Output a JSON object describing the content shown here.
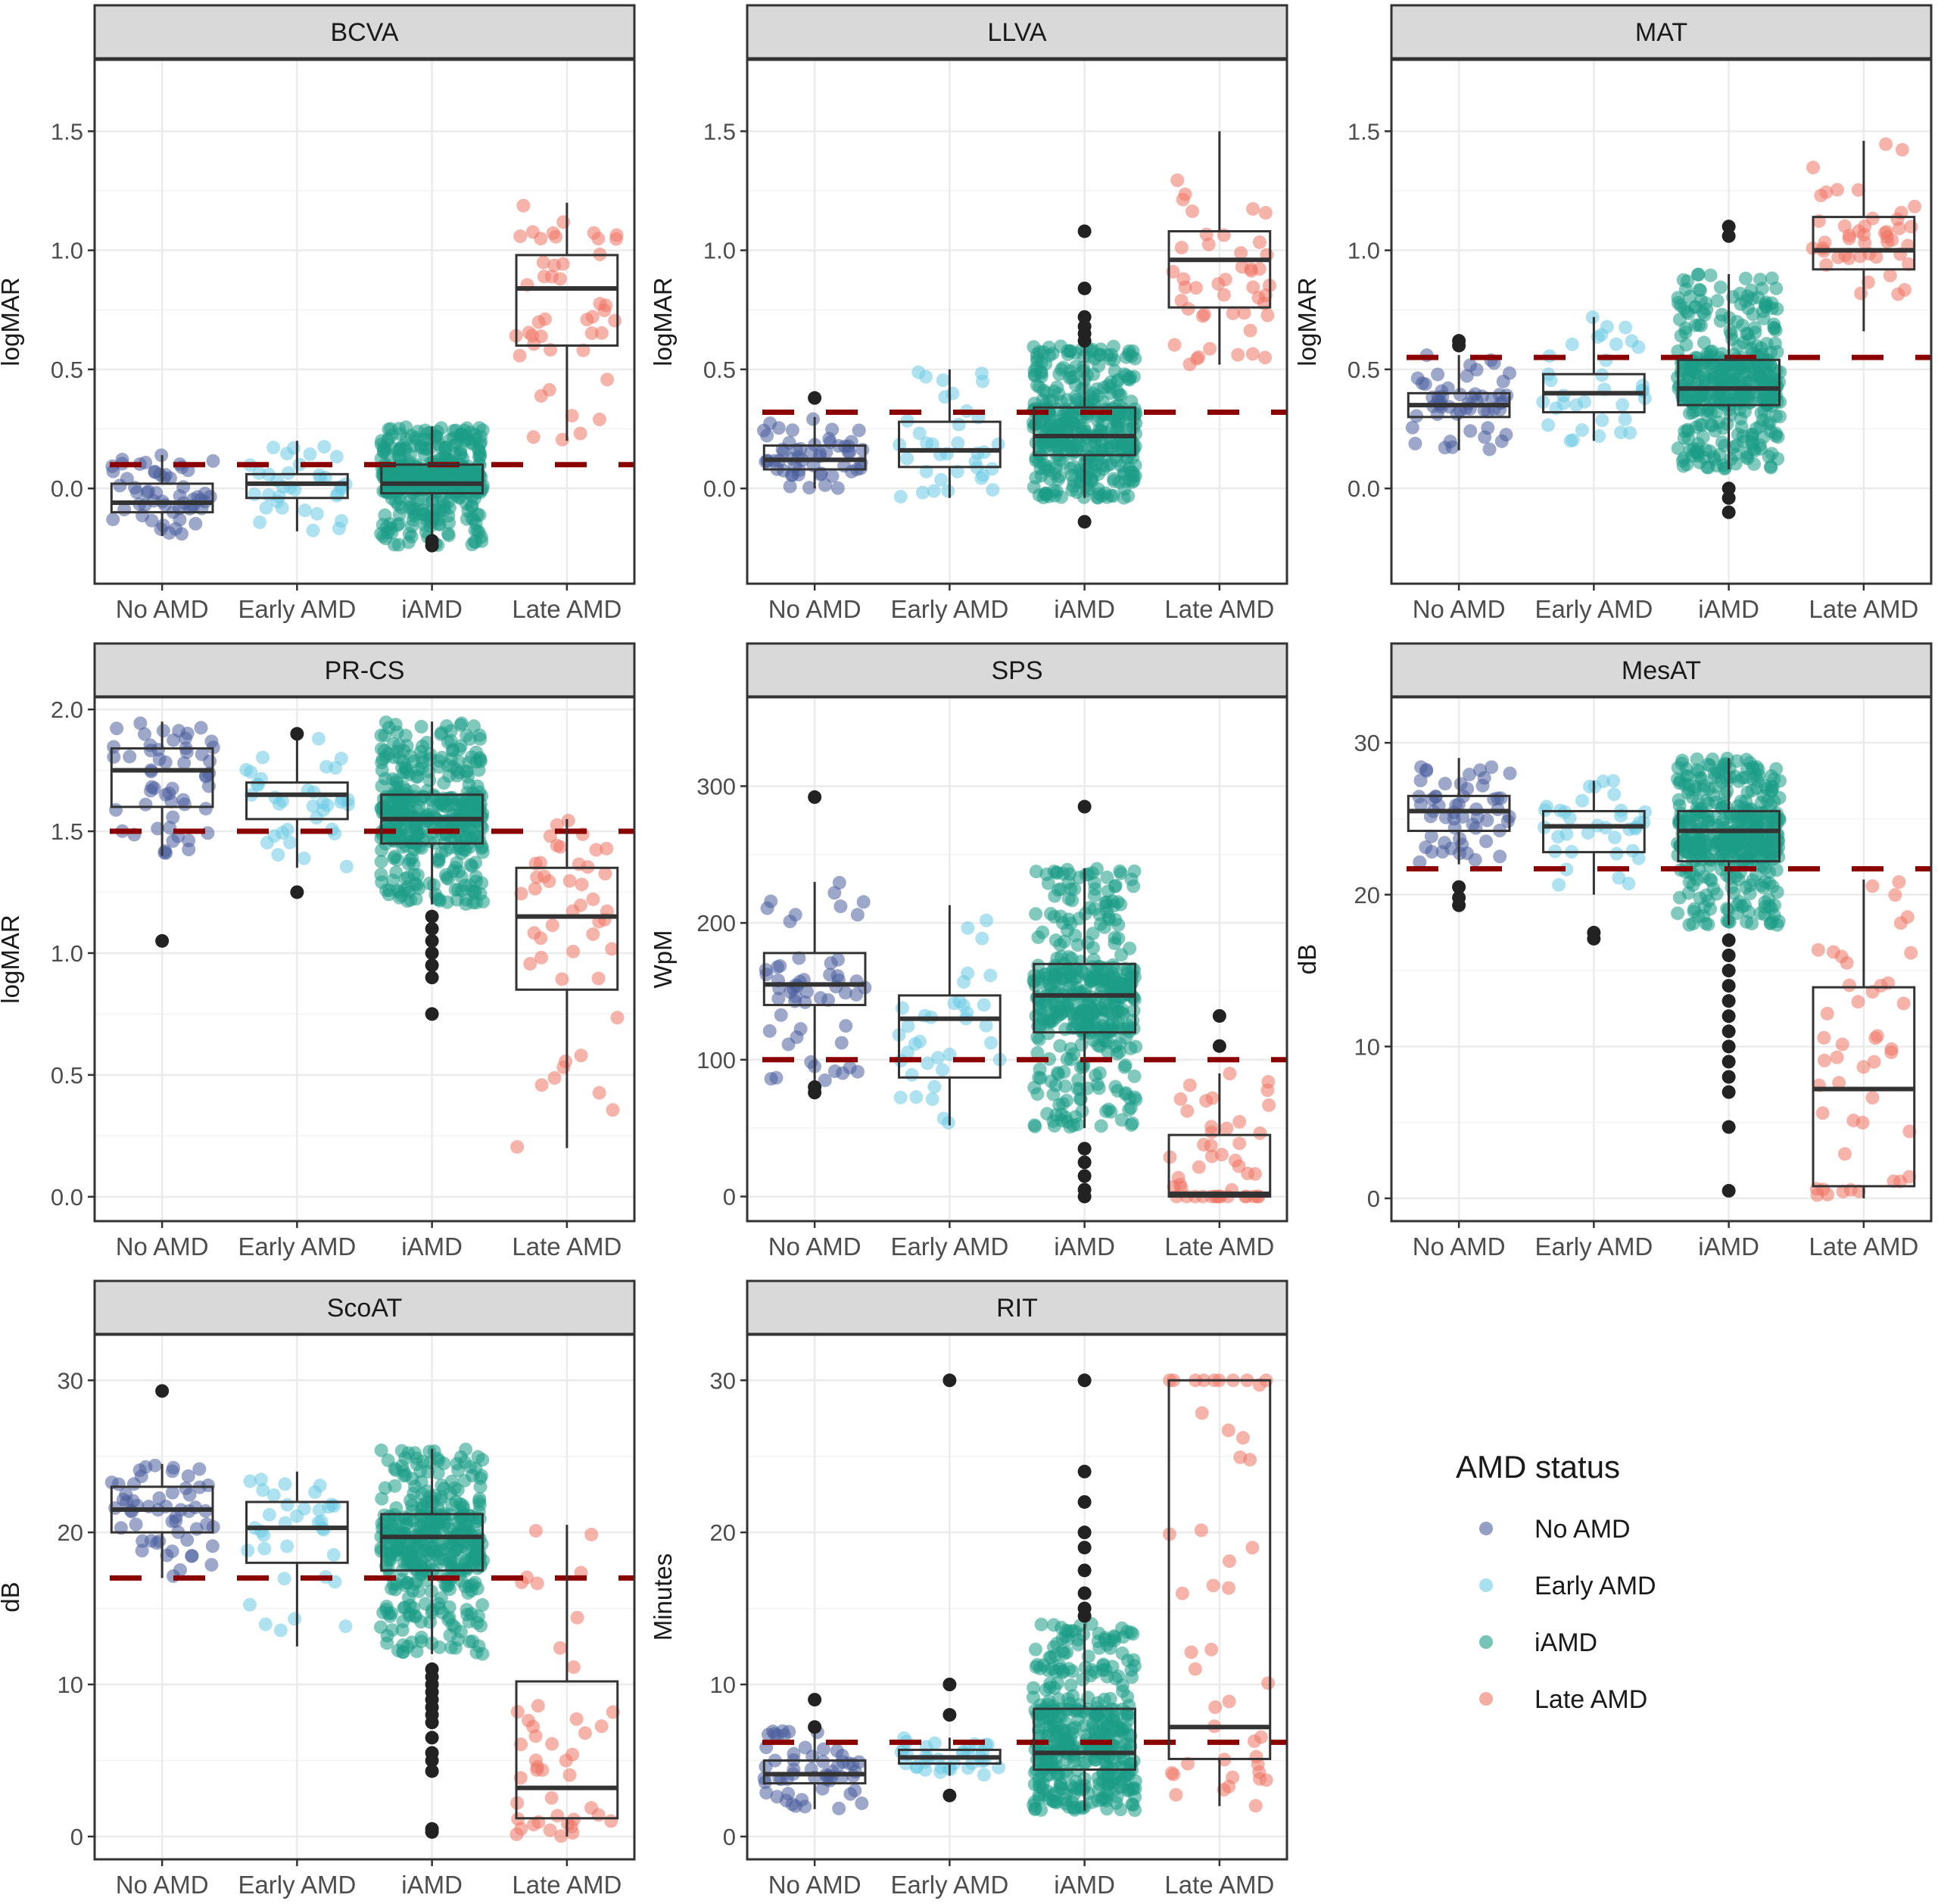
{
  "categories": [
    "No AMD",
    "Early AMD",
    "iAMD",
    "Late AMD"
  ],
  "colors": {
    "No AMD": "#4b5f9c",
    "Early AMD": "#6ccbe4",
    "iAMD": "#1c9c86",
    "Late AMD": "#ee7564",
    "threshold": "#8b0000",
    "strip_fill": "#d9d9d9",
    "grid": "#ebebeb",
    "box_line": "#333333",
    "outlier": "#222222"
  },
  "legend": {
    "title": "AMD status",
    "items": [
      "No AMD",
      "Early AMD",
      "iAMD",
      "Late AMD"
    ]
  },
  "chart_data": [
    {
      "type": "box",
      "title": "BCVA",
      "ylabel": "logMAR",
      "ylim": [
        -0.4,
        1.8
      ],
      "yticks": [
        0.0,
        0.5,
        1.0,
        1.5
      ],
      "ytick_labels": [
        "0.0",
        "0.5",
        "1.0",
        "1.5"
      ],
      "threshold": 0.1,
      "boxes": [
        {
          "q1": -0.1,
          "median": -0.06,
          "q3": 0.02,
          "whisker_low": -0.2,
          "whisker_high": 0.14,
          "n": 55
        },
        {
          "q1": -0.04,
          "median": 0.02,
          "q3": 0.06,
          "whisker_low": -0.18,
          "whisker_high": 0.2,
          "n": 35
        },
        {
          "q1": -0.02,
          "median": 0.02,
          "q3": 0.1,
          "whisker_low": -0.24,
          "whisker_high": 0.26,
          "n": 400
        },
        {
          "q1": 0.6,
          "median": 0.84,
          "q3": 0.98,
          "whisker_low": 0.2,
          "whisker_high": 1.2,
          "n": 45
        }
      ],
      "outliers": [
        [],
        [],
        [
          -0.22,
          -0.24
        ],
        []
      ]
    },
    {
      "type": "box",
      "title": "LLVA",
      "ylabel": "logMAR",
      "ylim": [
        -0.4,
        1.8
      ],
      "yticks": [
        0.0,
        0.5,
        1.0,
        1.5
      ],
      "ytick_labels": [
        "0.0",
        "0.5",
        "1.0",
        "1.5"
      ],
      "threshold": 0.32,
      "boxes": [
        {
          "q1": 0.08,
          "median": 0.12,
          "q3": 0.18,
          "whisker_low": 0.0,
          "whisker_high": 0.3,
          "n": 55
        },
        {
          "q1": 0.09,
          "median": 0.16,
          "q3": 0.28,
          "whisker_low": -0.04,
          "whisker_high": 0.5,
          "n": 35
        },
        {
          "q1": 0.14,
          "median": 0.22,
          "q3": 0.34,
          "whisker_low": -0.04,
          "whisker_high": 0.6,
          "n": 400
        },
        {
          "q1": 0.76,
          "median": 0.96,
          "q3": 1.08,
          "whisker_low": 0.52,
          "whisker_high": 1.5,
          "n": 45
        }
      ],
      "outliers": [
        [
          0.38
        ],
        [],
        [
          0.62,
          0.65,
          0.68,
          0.72,
          0.84,
          1.08,
          -0.14
        ],
        []
      ]
    },
    {
      "type": "box",
      "title": "MAT",
      "ylabel": "logMAR",
      "ylim": [
        -0.4,
        1.8
      ],
      "yticks": [
        0.0,
        0.5,
        1.0,
        1.5
      ],
      "ytick_labels": [
        "0.0",
        "0.5",
        "1.0",
        "1.5"
      ],
      "threshold": 0.55,
      "boxes": [
        {
          "q1": 0.3,
          "median": 0.35,
          "q3": 0.4,
          "whisker_low": 0.16,
          "whisker_high": 0.56,
          "n": 55
        },
        {
          "q1": 0.32,
          "median": 0.4,
          "q3": 0.48,
          "whisker_low": 0.2,
          "whisker_high": 0.72,
          "n": 35
        },
        {
          "q1": 0.35,
          "median": 0.42,
          "q3": 0.54,
          "whisker_low": 0.08,
          "whisker_high": 0.9,
          "n": 400
        },
        {
          "q1": 0.92,
          "median": 1.0,
          "q3": 1.14,
          "whisker_low": 0.66,
          "whisker_high": 1.46,
          "n": 45
        }
      ],
      "outliers": [
        [
          0.6,
          0.62
        ],
        [],
        [
          1.06,
          1.1,
          0.0,
          -0.04,
          -0.1
        ],
        []
      ]
    },
    {
      "type": "box",
      "title": "PR-CS",
      "ylabel": "logMAR",
      "ylim": [
        -0.1,
        2.05
      ],
      "yticks": [
        0.0,
        0.5,
        1.0,
        1.5,
        2.0
      ],
      "ytick_labels": [
        "0.0",
        "0.5",
        "1.0",
        "1.5",
        "2.0"
      ],
      "threshold": 1.5,
      "boxes": [
        {
          "q1": 1.6,
          "median": 1.75,
          "q3": 1.84,
          "whisker_low": 1.4,
          "whisker_high": 1.95,
          "n": 55
        },
        {
          "q1": 1.55,
          "median": 1.65,
          "q3": 1.7,
          "whisker_low": 1.35,
          "whisker_high": 1.9,
          "n": 35
        },
        {
          "q1": 1.45,
          "median": 1.55,
          "q3": 1.65,
          "whisker_low": 1.2,
          "whisker_high": 1.95,
          "n": 400
        },
        {
          "q1": 0.85,
          "median": 1.15,
          "q3": 1.35,
          "whisker_low": 0.2,
          "whisker_high": 1.55,
          "n": 45
        }
      ],
      "outliers": [
        [
          1.05
        ],
        [
          1.9,
          1.25
        ],
        [
          1.15,
          1.1,
          1.05,
          1.0,
          0.95,
          0.9,
          0.75
        ],
        []
      ]
    },
    {
      "type": "box",
      "title": "SPS",
      "ylabel": "WpM",
      "ylim": [
        -18,
        365
      ],
      "yticks": [
        0,
        100,
        200,
        300
      ],
      "ytick_labels": [
        "0",
        "100",
        "200",
        "300"
      ],
      "threshold": 100,
      "boxes": [
        {
          "q1": 140,
          "median": 155,
          "q3": 178,
          "whisker_low": 85,
          "whisker_high": 230,
          "n": 55
        },
        {
          "q1": 87,
          "median": 130,
          "q3": 147,
          "whisker_low": 52,
          "whisker_high": 213,
          "n": 35
        },
        {
          "q1": 120,
          "median": 147,
          "q3": 170,
          "whisker_low": 50,
          "whisker_high": 240,
          "n": 400
        },
        {
          "q1": 0,
          "median": 2,
          "q3": 45,
          "whisker_low": 0,
          "whisker_high": 90,
          "n": 45
        }
      ],
      "outliers": [
        [
          292,
          80,
          76
        ],
        [],
        [
          285,
          35,
          25,
          15,
          5,
          0
        ],
        [
          132,
          110
        ]
      ]
    },
    {
      "type": "box",
      "title": "MesAT",
      "ylabel": "dB",
      "ylim": [
        -1.5,
        33
      ],
      "yticks": [
        0,
        10,
        20,
        30
      ],
      "ytick_labels": [
        "0",
        "10",
        "20",
        "30"
      ],
      "threshold": 21.7,
      "boxes": [
        {
          "q1": 24.2,
          "median": 25.5,
          "q3": 26.5,
          "whisker_low": 22,
          "whisker_high": 29,
          "n": 55
        },
        {
          "q1": 22.8,
          "median": 24.5,
          "q3": 25.5,
          "whisker_low": 20,
          "whisker_high": 27.5,
          "n": 35
        },
        {
          "q1": 22.2,
          "median": 24.2,
          "q3": 25.5,
          "whisker_low": 18,
          "whisker_high": 29,
          "n": 400
        },
        {
          "q1": 0.8,
          "median": 7.2,
          "q3": 13.9,
          "whisker_low": 0,
          "whisker_high": 21,
          "n": 45
        }
      ],
      "outliers": [
        [
          20.5,
          19.8,
          19.3
        ],
        [
          17.5,
          17.1
        ],
        [
          17,
          16,
          15,
          14,
          13,
          12,
          11,
          10,
          9,
          8,
          7,
          4.7,
          0.5
        ],
        []
      ]
    },
    {
      "type": "box",
      "title": "ScoAT",
      "ylabel": "dB",
      "ylim": [
        -1.5,
        33
      ],
      "yticks": [
        0,
        10,
        20,
        30
      ],
      "ytick_labels": [
        "0",
        "10",
        "20",
        "30"
      ],
      "threshold": 17,
      "boxes": [
        {
          "q1": 20,
          "median": 21.5,
          "q3": 23,
          "whisker_low": 17,
          "whisker_high": 24.5,
          "n": 55
        },
        {
          "q1": 18,
          "median": 20.3,
          "q3": 22,
          "whisker_low": 12.5,
          "whisker_high": 24,
          "n": 35
        },
        {
          "q1": 17.5,
          "median": 19.7,
          "q3": 21.2,
          "whisker_low": 12,
          "whisker_high": 25.5,
          "n": 400
        },
        {
          "q1": 1.2,
          "median": 3.2,
          "q3": 10.2,
          "whisker_low": 0,
          "whisker_high": 20.5,
          "n": 45
        }
      ],
      "outliers": [
        [
          29.3
        ],
        [],
        [
          11,
          10.5,
          10,
          9.5,
          9,
          8.5,
          8,
          7.5,
          6.5,
          5.5,
          5,
          4.3,
          0.5,
          0.3
        ],
        []
      ]
    },
    {
      "type": "box",
      "title": "RIT",
      "ylabel": "Minutes",
      "ylim": [
        -1.5,
        33
      ],
      "yticks": [
        0,
        10,
        20,
        30
      ],
      "ytick_labels": [
        "0",
        "10",
        "20",
        "30"
      ],
      "threshold": 6.2,
      "boxes": [
        {
          "q1": 3.5,
          "median": 4.1,
          "q3": 5,
          "whisker_low": 1.8,
          "whisker_high": 7.2,
          "n": 55
        },
        {
          "q1": 4.8,
          "median": 5.2,
          "q3": 5.7,
          "whisker_low": 4,
          "whisker_high": 6.5,
          "n": 35
        },
        {
          "q1": 4.4,
          "median": 5.5,
          "q3": 8.4,
          "whisker_low": 1.7,
          "whisker_high": 14,
          "n": 400
        },
        {
          "q1": 5.1,
          "median": 7.2,
          "q3": 30,
          "whisker_low": 2,
          "whisker_high": 30,
          "n": 45
        }
      ],
      "outliers": [
        [
          9,
          7.2
        ],
        [
          30,
          10,
          8,
          2.7
        ],
        [
          30,
          24,
          22,
          20,
          19,
          17.5,
          16,
          15,
          14.5
        ],
        []
      ]
    }
  ]
}
